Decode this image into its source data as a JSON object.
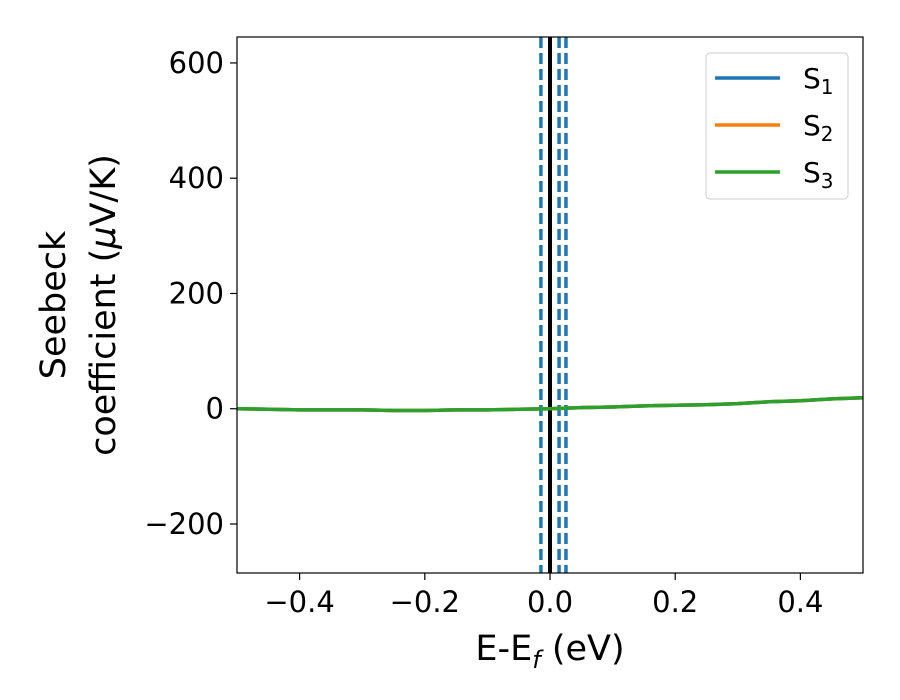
{
  "chart_data": {
    "type": "line",
    "xlabel": "E-E",
    "xlabel_sub": "f",
    "xlabel_unit": " (eV)",
    "ylabel_line1": "Seebeck",
    "ylabel_line2_pre": "coefficient  (",
    "ylabel_mu": "μ",
    "ylabel_line2_post": "V/K)",
    "xlim": [
      -0.5,
      0.5
    ],
    "ylim": [
      -285,
      645
    ],
    "xticks": [
      -0.4,
      -0.2,
      0.0,
      0.2,
      0.4
    ],
    "xtick_labels": [
      "−0.4",
      "−0.2",
      "0.0",
      "0.2",
      "0.4"
    ],
    "yticks": [
      -200,
      0,
      200,
      400,
      600
    ],
    "ytick_labels": [
      "−200",
      "0",
      "200",
      "400",
      "600"
    ],
    "grid": false,
    "legend_position": "top-right",
    "series": [
      {
        "name": "S",
        "sub": "1",
        "color": "#1f77b4",
        "x": [
          -0.5,
          -0.45,
          -0.4,
          -0.35,
          -0.3,
          -0.25,
          -0.2,
          -0.15,
          -0.1,
          -0.05,
          0.0,
          0.05,
          0.1,
          0.15,
          0.2,
          0.25,
          0.3,
          0.35,
          0.4,
          0.45,
          0.5
        ],
        "y": [
          0,
          -1,
          -2,
          -2,
          -2,
          -3,
          -3,
          -2,
          -2,
          -1,
          0,
          2,
          3,
          5,
          6,
          7,
          9,
          12,
          14,
          17,
          19
        ]
      },
      {
        "name": "S",
        "sub": "2",
        "color": "#ff7f0e",
        "x": [
          -0.5,
          -0.45,
          -0.4,
          -0.35,
          -0.3,
          -0.25,
          -0.2,
          -0.15,
          -0.1,
          -0.05,
          0.0,
          0.05,
          0.1,
          0.15,
          0.2,
          0.25,
          0.3,
          0.35,
          0.4,
          0.45,
          0.5
        ],
        "y": [
          0,
          -1,
          -2,
          -2,
          -2,
          -3,
          -3,
          -2,
          -2,
          -1,
          0,
          2,
          3,
          5,
          6,
          7,
          9,
          12,
          14,
          17,
          19
        ]
      },
      {
        "name": "S",
        "sub": "3",
        "color": "#2ca02c",
        "x": [
          -0.5,
          -0.45,
          -0.4,
          -0.35,
          -0.3,
          -0.25,
          -0.2,
          -0.15,
          -0.1,
          -0.05,
          0.0,
          0.05,
          0.1,
          0.15,
          0.2,
          0.25,
          0.3,
          0.35,
          0.4,
          0.45,
          0.5
        ],
        "y": [
          0,
          -1,
          -2,
          -2,
          -2,
          -3,
          -3,
          -2,
          -2,
          -1,
          0,
          2,
          3,
          5,
          6,
          7,
          9,
          12,
          14,
          17,
          19
        ]
      }
    ],
    "vlines": [
      {
        "x": 0.0,
        "style": "solid",
        "color": "#000000"
      },
      {
        "x": -0.0145,
        "style": "dashed",
        "color": "#1f77b4"
      },
      {
        "x": 0.0145,
        "style": "dashed",
        "color": "#1f77b4"
      },
      {
        "x": 0.0255,
        "style": "dashed",
        "color": "#1f77b4"
      }
    ]
  }
}
